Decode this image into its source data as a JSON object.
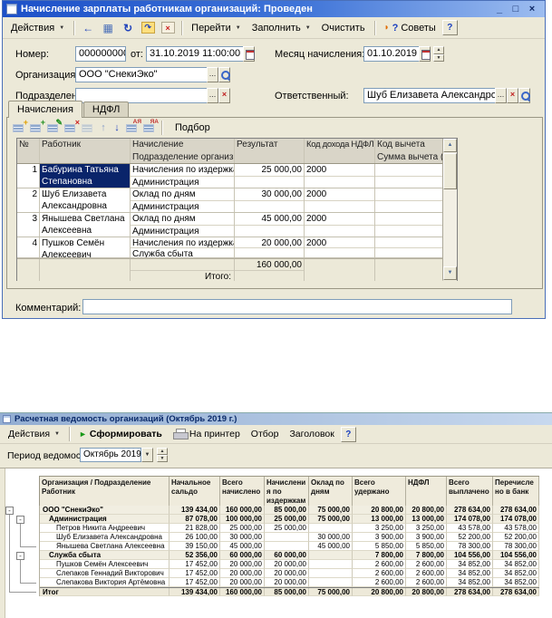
{
  "colors": {
    "titlebar_active": "#1c50c8",
    "titlebar_inactive": "#93aed2",
    "selection": "#0A246A",
    "form_bg": "#ECE9D8",
    "accent_green": "#189818"
  },
  "icons": {
    "back": "←",
    "register": "▦",
    "refresh": "↻",
    "post": "↷",
    "unpost": "×",
    "dots": "...",
    "dropdown": "▼",
    "spin_up": "▲",
    "spin_down": "▼",
    "clear_x": "×",
    "add": "+",
    "copy": "+",
    "edit": "✎",
    "delete": "×",
    "up": "↑",
    "down": "↓",
    "sort_asc": "АЯ",
    "sort_desc": "ЯА",
    "play": "►",
    "minus": "-",
    "tips_accent": "◗",
    "tips_q": "?",
    "scroll_up": "▲",
    "scroll_down": "▼"
  },
  "window1": {
    "title": "Начисление зарплаты работникам организаций: Проведен",
    "window_buttons": {
      "minimize": "_",
      "maximize": "□",
      "close": "×"
    },
    "toolbar": {
      "actions": "Действия",
      "goto": "Перейти",
      "fill": "Заполнить",
      "clear": "Очистить",
      "tips": "Советы",
      "help": "?"
    },
    "fields": {
      "number_label": "Номер:",
      "number_value": "00000000002",
      "from_label": "от:",
      "date_value": "31.10.2019 11:00:00",
      "month_label": "Месяц начисления:",
      "month_value": "01.10.2019",
      "org_label": "Организация:",
      "org_value": "ООО \"СнекиЭко\"",
      "dept_label": "Подразделение:",
      "dept_value": "",
      "resp_label": "Ответственный:",
      "resp_value": "Шуб Елизавета Александровна",
      "comment_label": "Комментарий:",
      "comment_value": ""
    },
    "tabs": {
      "accruals": "Начисления",
      "ndfl": "НДФЛ"
    },
    "grid_toolbar": {
      "pick": "Подбор"
    },
    "table": {
      "headers": {
        "num": "№",
        "worker": "Работник",
        "accrual": "Начисление",
        "dept": "Подразделение организации",
        "result": "Результат",
        "income_code": "Код дохода НДФЛ",
        "deduction_code": "Код вычета",
        "deduction_sum": "Сумма вычета (к..."
      },
      "rows": [
        {
          "num": "1",
          "worker": "Бабурина Татьяна Степановна",
          "accrual": "Начисления по издержкам",
          "dept": "Администрация",
          "result": "25 000,00",
          "code": "2000",
          "selected": true
        },
        {
          "num": "2",
          "worker": "Шуб Елизавета Александровна",
          "accrual": "Оклад по дням",
          "dept": "Администрация",
          "result": "30 000,00",
          "code": "2000",
          "selected": false
        },
        {
          "num": "3",
          "worker": "Янышева Светлана Алексеевна",
          "accrual": "Оклад по дням",
          "dept": "Администрация",
          "result": "45 000,00",
          "code": "2000",
          "selected": false
        },
        {
          "num": "4",
          "worker": "Пушков Семён Алексеевич",
          "accrual": "Начисления по издержкам",
          "dept": "Служба сбыта",
          "result": "20 000,00",
          "code": "2000",
          "selected": false
        }
      ],
      "total_label": "Итого:",
      "total_value": "160 000,00"
    }
  },
  "window2": {
    "title": "Расчетная ведомость организаций (Октябрь 2019 г.)",
    "toolbar": {
      "actions": "Действия",
      "generate": "Сформировать",
      "print": "На принтер",
      "filter": "Отбор",
      "header": "Заголовок",
      "help": "?"
    },
    "period": {
      "label": "Период ведомости:",
      "value": "Октябрь 2019"
    },
    "report": {
      "columns": [
        "Организация / Подразделение Работник",
        "Начальное сальдо",
        "Всего начислено",
        "Начисления по издержкам",
        "Оклад по дням",
        "Всего удержано",
        "НДФЛ",
        "Всего выплачено",
        "Перечислено в банк"
      ],
      "rows": [
        {
          "name": "ООО \"СнекиЭко\"",
          "level": 0,
          "bold": true,
          "total": false,
          "values": [
            "139 434,00",
            "160 000,00",
            "85 000,00",
            "75 000,00",
            "20 800,00",
            "20 800,00",
            "278 634,00",
            "278 634,00"
          ]
        },
        {
          "name": "Администрация",
          "level": 1,
          "bold": true,
          "total": false,
          "values": [
            "87 078,00",
            "100 000,00",
            "25 000,00",
            "75 000,00",
            "13 000,00",
            "13 000,00",
            "174 078,00",
            "174 078,00"
          ]
        },
        {
          "name": "Петров Никита Андреевич",
          "level": 2,
          "bold": false,
          "total": false,
          "values": [
            "21 828,00",
            "25 000,00",
            "25 000,00",
            "",
            "3 250,00",
            "3 250,00",
            "43 578,00",
            "43 578,00"
          ]
        },
        {
          "name": "Шуб Елизавета Александровна",
          "level": 2,
          "bold": false,
          "total": false,
          "values": [
            "26 100,00",
            "30 000,00",
            "",
            "30 000,00",
            "3 900,00",
            "3 900,00",
            "52 200,00",
            "52 200,00"
          ]
        },
        {
          "name": "Янышева Светлана Алексеевна",
          "level": 2,
          "bold": false,
          "total": false,
          "values": [
            "39 150,00",
            "45 000,00",
            "",
            "45 000,00",
            "5 850,00",
            "5 850,00",
            "78 300,00",
            "78 300,00"
          ]
        },
        {
          "name": "Служба сбыта",
          "level": 1,
          "bold": true,
          "total": false,
          "values": [
            "52 356,00",
            "60 000,00",
            "60 000,00",
            "",
            "7 800,00",
            "7 800,00",
            "104 556,00",
            "104 556,00"
          ]
        },
        {
          "name": "Пушков Семён Алексеевич",
          "level": 2,
          "bold": false,
          "total": false,
          "values": [
            "17 452,00",
            "20 000,00",
            "20 000,00",
            "",
            "2 600,00",
            "2 600,00",
            "34 852,00",
            "34 852,00"
          ]
        },
        {
          "name": "Слепаков Геннадий Викторович",
          "level": 2,
          "bold": false,
          "total": false,
          "values": [
            "17 452,00",
            "20 000,00",
            "20 000,00",
            "",
            "2 600,00",
            "2 600,00",
            "34 852,00",
            "34 852,00"
          ]
        },
        {
          "name": "Слепакова Виктория Артёмовна",
          "level": 2,
          "bold": false,
          "total": false,
          "values": [
            "17 452,00",
            "20 000,00",
            "20 000,00",
            "",
            "2 600,00",
            "2 600,00",
            "34 852,00",
            "34 852,00"
          ]
        },
        {
          "name": "Итог",
          "level": 0,
          "bold": true,
          "total": true,
          "values": [
            "139 434,00",
            "160 000,00",
            "85 000,00",
            "75 000,00",
            "20 800,00",
            "20 800,00",
            "278 634,00",
            "278 634,00"
          ]
        }
      ]
    }
  }
}
